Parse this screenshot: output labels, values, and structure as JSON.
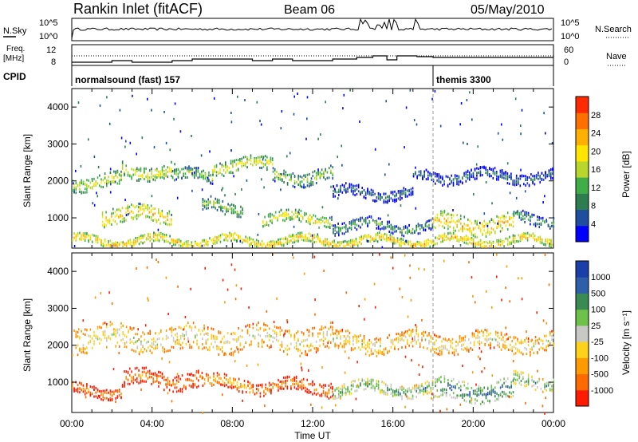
{
  "header": {
    "title": "Rankin Inlet (fitACF)",
    "beam": "Beam 06",
    "date": "05/May/2010"
  },
  "noise_panel": {
    "left_label": "N.Sky",
    "left_ticks": [
      "10^5",
      "10^0"
    ],
    "right_label": "N.Search",
    "right_ticks": [
      "10^5",
      "10^0"
    ]
  },
  "freq_panel": {
    "left_label_1": "Freq.",
    "left_label_2": "[MHz]",
    "left_ticks": [
      "12",
      "8"
    ],
    "right_label": "Nave",
    "right_ticks": [
      "60",
      "0"
    ]
  },
  "cpid_panel": {
    "label": "CPID",
    "modes": [
      {
        "name": "normalsound (fast) 157",
        "start_hour": 0
      },
      {
        "name": "themis 3300",
        "start_hour": 18
      }
    ]
  },
  "x_axis": {
    "label": "Time UT",
    "ticks": [
      "00:00",
      "04:00",
      "08:00",
      "12:00",
      "16:00",
      "20:00",
      "00:00"
    ]
  },
  "colors": {
    "power": [
      "#0000ff",
      "#1f4e9e",
      "#2e7d50",
      "#3fae49",
      "#b8d62b",
      "#ffe600",
      "#ffb000",
      "#ff7000",
      "#ff2a00"
    ],
    "velocity": [
      "#1a3fa8",
      "#2e5fa8",
      "#3a8a54",
      "#6ec24a",
      "#c8c8c4",
      "#ffd21a",
      "#ff9a00",
      "#ff6a00",
      "#ff1a00"
    ]
  },
  "chart_data": [
    {
      "type": "heatmap",
      "title": "",
      "xlabel": "",
      "ylabel": "Slant Range [km]",
      "xlim": [
        0,
        24
      ],
      "ylim": [
        180,
        4500
      ],
      "yticks": [
        "1000",
        "2000",
        "3000",
        "4000"
      ],
      "colorbar_label": "Power [dB]",
      "colorbar_ticks": [
        "4",
        "8",
        "12",
        "16",
        "20",
        "24",
        "28"
      ],
      "bands": [
        {
          "start": 0.0,
          "end": 2.5,
          "center": 2000,
          "width": 380,
          "level": 5
        },
        {
          "start": 2.5,
          "end": 5.0,
          "center": 2300,
          "width": 380,
          "level": 5
        },
        {
          "start": 5.0,
          "end": 7.0,
          "center": 2150,
          "width": 300,
          "level": 4
        },
        {
          "start": 7.0,
          "end": 10.0,
          "center": 2450,
          "width": 360,
          "level": 5
        },
        {
          "start": 10.0,
          "end": 13.0,
          "center": 2150,
          "width": 380,
          "level": 4
        },
        {
          "start": 13.0,
          "end": 17.0,
          "center": 1700,
          "width": 300,
          "level": 2
        },
        {
          "start": 17.0,
          "end": 24.0,
          "center": 2150,
          "width": 300,
          "level": 2
        },
        {
          "start": 1.5,
          "end": 5.0,
          "center": 1100,
          "width": 420,
          "level": 6
        },
        {
          "start": 6.5,
          "end": 8.5,
          "center": 1300,
          "width": 300,
          "level": 4
        },
        {
          "start": 9.5,
          "end": 13.0,
          "center": 1000,
          "width": 320,
          "level": 5
        },
        {
          "start": 13.0,
          "end": 18.0,
          "center": 800,
          "width": 300,
          "level": 3
        },
        {
          "start": 18.0,
          "end": 22.0,
          "center": 850,
          "width": 500,
          "level": 6
        },
        {
          "start": 22.0,
          "end": 24.0,
          "center": 1000,
          "width": 300,
          "level": 3
        },
        {
          "start": 0.0,
          "end": 24.0,
          "center": 400,
          "width": 220,
          "level": 6
        }
      ]
    },
    {
      "type": "heatmap",
      "title": "",
      "xlabel": "Time UT",
      "ylabel": "Slant Range [km]",
      "xlim": [
        0,
        24
      ],
      "ylim": [
        180,
        4500
      ],
      "yticks": [
        "1000",
        "2000",
        "3000",
        "4000"
      ],
      "colorbar_label": "Velocity [m s⁻¹]",
      "colorbar_ticks": [
        "1000",
        "500",
        "100",
        "25",
        "-25",
        "-100",
        "-500",
        "-1000"
      ],
      "bands": [
        {
          "start": 0.0,
          "end": 13.0,
          "center": 2200,
          "width": 700,
          "level": 4
        },
        {
          "start": 13.0,
          "end": 24.0,
          "center": 2100,
          "width": 500,
          "level": 4
        },
        {
          "start": 0.0,
          "end": 2.5,
          "center": 800,
          "width": 300,
          "level": 2
        },
        {
          "start": 2.5,
          "end": 6.5,
          "center": 1100,
          "width": 450,
          "level": 2
        },
        {
          "start": 6.5,
          "end": 9.0,
          "center": 1000,
          "width": 350,
          "level": 3
        },
        {
          "start": 9.0,
          "end": 13.0,
          "center": 900,
          "width": 350,
          "level": 2
        },
        {
          "start": 13.0,
          "end": 18.0,
          "center": 850,
          "width": 350,
          "level": 6
        },
        {
          "start": 18.0,
          "end": 22.0,
          "center": 800,
          "width": 550,
          "level": 7
        },
        {
          "start": 22.0,
          "end": 24.0,
          "center": 1050,
          "width": 350,
          "level": 6
        }
      ]
    }
  ]
}
